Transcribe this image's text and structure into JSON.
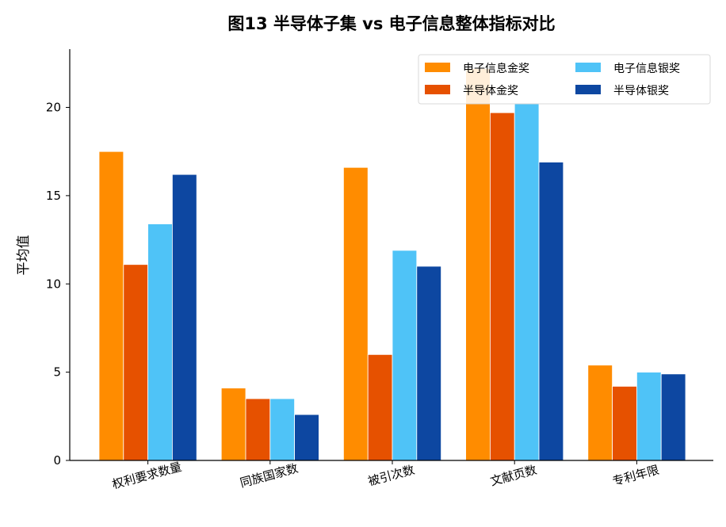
{
  "chart_data": {
    "type": "bar",
    "title": "图13  半导体子集 vs 电子信息整体指标对比",
    "xlabel": "",
    "ylabel": "平均值",
    "categories": [
      "权利要求数量",
      "同族国家数",
      "被引次数",
      "文献页数",
      "专利年限"
    ],
    "yticks": [
      "0",
      "5",
      "10",
      "15",
      "20"
    ],
    "ylim": [
      0,
      23.3
    ],
    "grid": false,
    "legend_position": "top-right",
    "series": [
      {
        "name": "电子信息金奖",
        "color": "#FF8C00",
        "values": [
          17.5,
          4.1,
          16.6,
          22.2,
          5.4
        ]
      },
      {
        "name": "半导体金奖",
        "color": "#E65100",
        "values": [
          11.1,
          3.5,
          6.0,
          19.7,
          4.2
        ]
      },
      {
        "name": "电子信息银奖",
        "color": "#4FC3F7",
        "values": [
          13.4,
          3.5,
          11.9,
          20.2,
          5.0
        ]
      },
      {
        "name": "半导体银奖",
        "color": "#0D47A1",
        "values": [
          16.2,
          2.6,
          11.0,
          16.9,
          4.9
        ]
      }
    ]
  }
}
